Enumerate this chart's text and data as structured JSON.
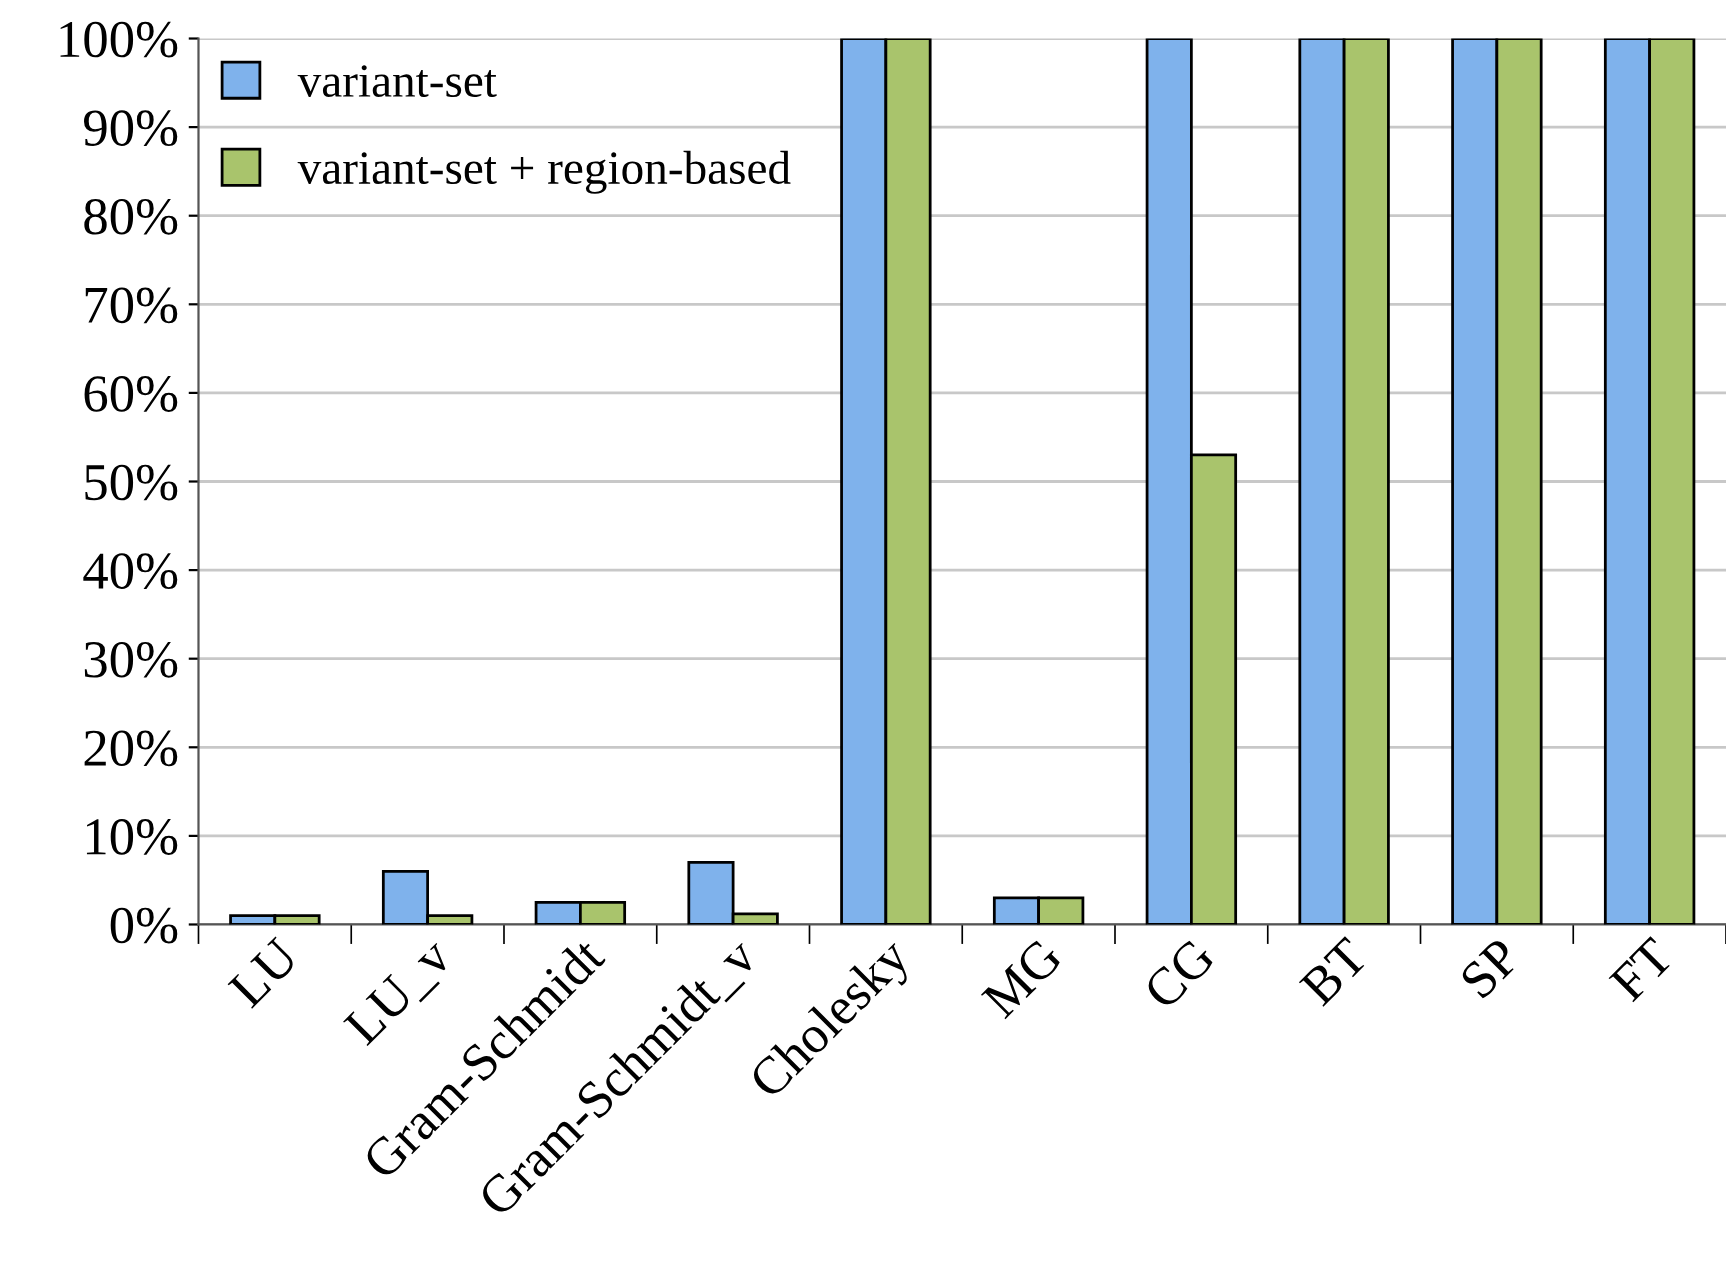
{
  "chart_data": {
    "type": "bar",
    "categories": [
      "LU",
      "LU_v",
      "Gram-Schmidt",
      "Gram-Schmidt_v",
      "Cholesky",
      "MG",
      "CG",
      "BT",
      "SP",
      "FT"
    ],
    "series": [
      {
        "name": "variant-set",
        "color": "#7fb2ec",
        "values": [
          1,
          6,
          2.5,
          7,
          100,
          3,
          100,
          100,
          100,
          100
        ]
      },
      {
        "name": "variant-set + region-based",
        "color": "#a9c46c",
        "values": [
          1,
          1,
          2.5,
          1.2,
          100,
          3,
          53,
          100,
          100,
          100
        ]
      }
    ],
    "ylim": [
      0,
      100
    ],
    "yticks": [
      {
        "value": 0,
        "label": "0%"
      },
      {
        "value": 10,
        "label": "10%"
      },
      {
        "value": 20,
        "label": "20%"
      },
      {
        "value": 30,
        "label": "30%"
      },
      {
        "value": 40,
        "label": "40%"
      },
      {
        "value": 50,
        "label": "50%"
      },
      {
        "value": 60,
        "label": "60%"
      },
      {
        "value": 70,
        "label": "70%"
      },
      {
        "value": 80,
        "label": "80%"
      },
      {
        "value": 90,
        "label": "90%"
      },
      {
        "value": 100,
        "label": "100%"
      }
    ],
    "grid": "y",
    "legend": "top left"
  }
}
